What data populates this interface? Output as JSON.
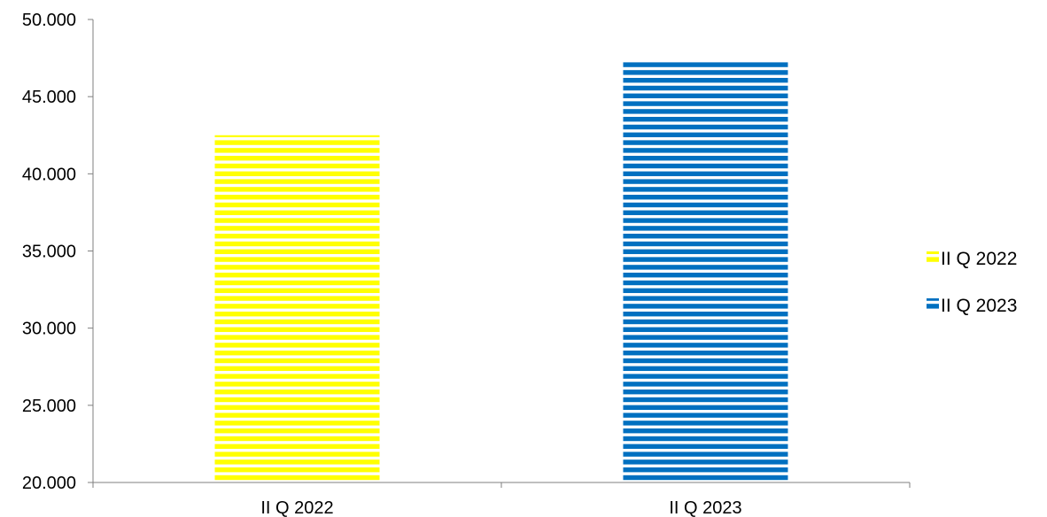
{
  "chart_data": {
    "type": "bar",
    "categories": [
      "II Q 2022",
      "II Q 2023"
    ],
    "series": [
      {
        "name": "II Q 2022",
        "values": [
          42500,
          null
        ],
        "color": "#FFFF00"
      },
      {
        "name": "II Q 2023",
        "values": [
          null,
          47300
        ],
        "color": "#0070C0"
      }
    ],
    "y_ticks": [
      "20.000",
      "25.000",
      "30.000",
      "35.000",
      "40.000",
      "45.000",
      "50.000"
    ],
    "ylim": [
      20000,
      50000
    ],
    "xlabel": "",
    "ylabel": "",
    "title": "",
    "fill_pattern": "horizontal-stripes",
    "grid": false,
    "legend_position": "right"
  }
}
